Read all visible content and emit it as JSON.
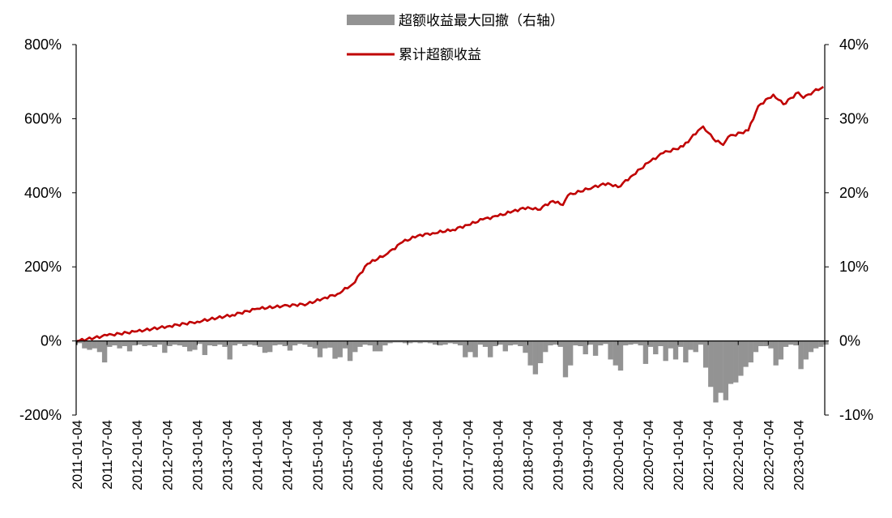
{
  "chart_data": {
    "type": "bar+line",
    "title": "",
    "legend": {
      "placement": "top-center",
      "entries": [
        {
          "label": "超额收益最大回撤（右轴）",
          "color": "#939393",
          "kind": "bar"
        },
        {
          "label": "累计超额收益",
          "color": "#c00000",
          "kind": "line"
        }
      ]
    },
    "left_axis": {
      "ylim": [
        -200,
        800
      ],
      "ticks": [
        "-200%",
        "0%",
        "200%",
        "400%",
        "600%",
        "800%"
      ],
      "tick_values": [
        -200,
        0,
        200,
        400,
        600,
        800
      ]
    },
    "right_axis": {
      "ylim": [
        -10,
        40
      ],
      "ticks": [
        "-10%",
        "0%",
        "10%",
        "20%",
        "30%",
        "40%"
      ],
      "tick_values": [
        -10,
        0,
        10,
        20,
        30,
        40
      ]
    },
    "x_ticks": [
      "2011-01-04",
      "2011-07-04",
      "2012-01-04",
      "2012-07-04",
      "2013-01-04",
      "2013-07-04",
      "2014-01-04",
      "2014-07-04",
      "2015-01-04",
      "2015-07-04",
      "2016-01-04",
      "2016-07-04",
      "2017-01-04",
      "2017-07-04",
      "2018-01-04",
      "2018-07-04",
      "2019-01-04",
      "2019-07-04",
      "2020-01-04",
      "2020-07-04",
      "2021-01-04",
      "2021-07-04",
      "2022-01-04",
      "2022-07-04",
      "2023-01-04"
    ],
    "x_range": [
      "2011-01",
      "2023-06"
    ],
    "series": [
      {
        "name": "累计超额收益",
        "axis": "left",
        "unit": "%",
        "points": [
          [
            "2011-01",
            0
          ],
          [
            "2011-07",
            15
          ],
          [
            "2012-01",
            26
          ],
          [
            "2012-07",
            39
          ],
          [
            "2013-01",
            52
          ],
          [
            "2013-08",
            70
          ],
          [
            "2014-01",
            87
          ],
          [
            "2014-06",
            94
          ],
          [
            "2014-11",
            100
          ],
          [
            "2015-02",
            114
          ],
          [
            "2015-05",
            127
          ],
          [
            "2015-08",
            153
          ],
          [
            "2015-11",
            208
          ],
          [
            "2016-03",
            236
          ],
          [
            "2016-06",
            267
          ],
          [
            "2016-09",
            284
          ],
          [
            "2016-12",
            291
          ],
          [
            "2017-04",
            300
          ],
          [
            "2017-07",
            313
          ],
          [
            "2017-10",
            328
          ],
          [
            "2018-01",
            337
          ],
          [
            "2018-04",
            350
          ],
          [
            "2018-07",
            361
          ],
          [
            "2018-09",
            354
          ],
          [
            "2018-12",
            378
          ],
          [
            "2019-02",
            367
          ],
          [
            "2019-03",
            393
          ],
          [
            "2019-08",
            415
          ],
          [
            "2019-11",
            426
          ],
          [
            "2020-01",
            415
          ],
          [
            "2020-04",
            448
          ],
          [
            "2020-07",
            481
          ],
          [
            "2020-10",
            507
          ],
          [
            "2021-02",
            525
          ],
          [
            "2021-05",
            568
          ],
          [
            "2021-06",
            579
          ],
          [
            "2021-08",
            546
          ],
          [
            "2021-10",
            529
          ],
          [
            "2021-11",
            551
          ],
          [
            "2022-03",
            568
          ],
          [
            "2022-05",
            634
          ],
          [
            "2022-08",
            665
          ],
          [
            "2022-10",
            639
          ],
          [
            "2023-01",
            671
          ],
          [
            "2023-02",
            656
          ],
          [
            "2023-04",
            673
          ],
          [
            "2023-06",
            686
          ]
        ]
      },
      {
        "name": "超额收益最大回撤（右轴）",
        "axis": "right",
        "unit": "%",
        "start": "2011-01",
        "frequency": "monthly",
        "values": [
          -0.3,
          -1,
          -1.2,
          -1,
          -1.5,
          -2.9,
          -0.8,
          -0.6,
          -1,
          -0.7,
          -1.4,
          -0.6,
          -0.5,
          -0.7,
          -0.6,
          -0.8,
          -0.5,
          -1.6,
          -0.7,
          -0.5,
          -0.6,
          -0.8,
          -1.4,
          -1.2,
          -0.4,
          -1.9,
          -0.6,
          -0.7,
          -0.5,
          -0.8,
          -2.5,
          -0.6,
          -0.4,
          -0.7,
          -0.5,
          -0.6,
          -0.8,
          -1.6,
          -1.5,
          -0.6,
          -0.5,
          -0.7,
          -1.3,
          -0.6,
          -0.4,
          -0.5,
          -0.8,
          -1.0,
          -2.2,
          -1.0,
          -0.9,
          -2.4,
          -2.2,
          -1.0,
          -2.7,
          -1.5,
          -0.8,
          -0.5,
          -0.6,
          -1.4,
          -1.4,
          -0.6,
          -0.3,
          -0.2,
          -0.2,
          -0.3,
          -0.3,
          -0.2,
          -0.3,
          -0.2,
          -0.3,
          -0.5,
          -0.6,
          -0.5,
          -0.3,
          -0.4,
          -0.6,
          -2.2,
          -1.5,
          -2.2,
          -0.5,
          -0.8,
          -2.2,
          -0.7,
          -0.5,
          -1.4,
          -0.6,
          -0.5,
          -0.7,
          -1.6,
          -3.3,
          -4.5,
          -3.0,
          -1.5,
          -0.6,
          -0.5,
          -0.8,
          -4.9,
          -3.3,
          -0.6,
          -0.7,
          -1.8,
          -0.5,
          -2.0,
          -0.6,
          -0.4,
          -2.5,
          -3.3,
          -4.0,
          -0.6,
          -0.5,
          -0.4,
          -0.6,
          -3.1,
          -0.8,
          -1.8,
          -0.7,
          -2.7,
          -1.0,
          -2.5,
          -0.8,
          -2.9,
          -1.2,
          -1.5,
          -0.5,
          -3.6,
          -6.2,
          -8.3,
          -7.0,
          -8.0,
          -5.8,
          -5.6,
          -4.7,
          -3.5,
          -2.9,
          -1.5,
          -0.7,
          -0.7,
          -1.0,
          -3.3,
          -2.5,
          -0.8,
          -0.5,
          -0.6,
          -3.8,
          -2.5,
          -1.5,
          -1.0,
          -0.8,
          -0.5
        ]
      }
    ]
  }
}
